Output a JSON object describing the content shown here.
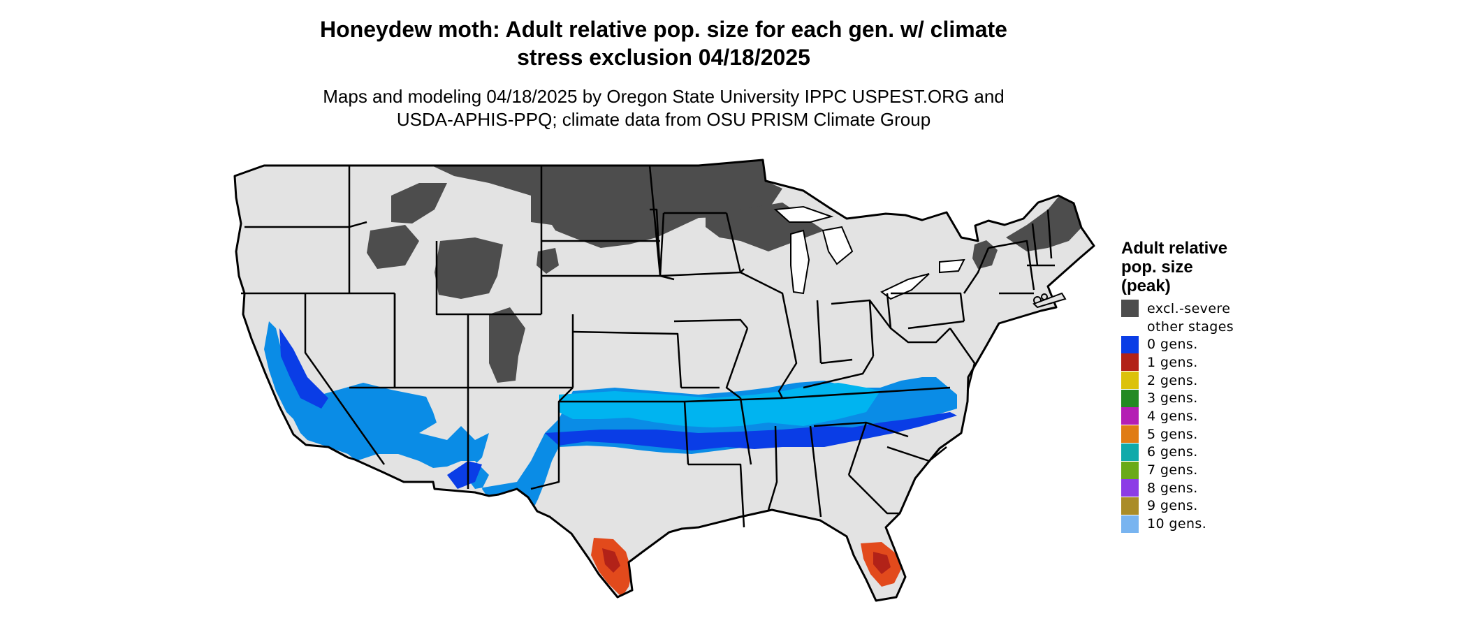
{
  "header": {
    "title_line1": "Honeydew moth: Adult relative pop. size for each gen. w/ climate",
    "title_line2": "stress exclusion 04/18/2025",
    "subtitle_line1": "Maps and modeling 04/18/2025 by Oregon State University IPPC USPEST.ORG and",
    "subtitle_line2": "USDA-APHIS-PPQ; climate data from OSU PRISM Climate Group"
  },
  "map": {
    "region": "Conterminous United States",
    "base_color": "#e3e3e3",
    "border_color": "#000000"
  },
  "legend": {
    "title_line1": "Adult relative",
    "title_line2": "pop. size",
    "title_line3": "(peak)",
    "items": [
      {
        "label": "excl.-severe",
        "color": "#4d4d4d"
      },
      {
        "label": "other stages",
        "color": "#ffffff"
      },
      {
        "label": "0 gens.",
        "color": "#0a3de6"
      },
      {
        "label": "1 gens.",
        "color": "#b22218"
      },
      {
        "label": "2 gens.",
        "color": "#dcc20a"
      },
      {
        "label": "3 gens.",
        "color": "#238a23"
      },
      {
        "label": "4 gens.",
        "color": "#b41eb4"
      },
      {
        "label": "5 gens.",
        "color": "#e07c14"
      },
      {
        "label": "6 gens.",
        "color": "#10aaaa"
      },
      {
        "label": "7 gens.",
        "color": "#6aaa18"
      },
      {
        "label": "8 gens.",
        "color": "#8c3ce6"
      },
      {
        "label": "9 gens.",
        "color": "#aa8c28"
      },
      {
        "label": "10 gens.",
        "color": "#78b4f0"
      }
    ]
  }
}
